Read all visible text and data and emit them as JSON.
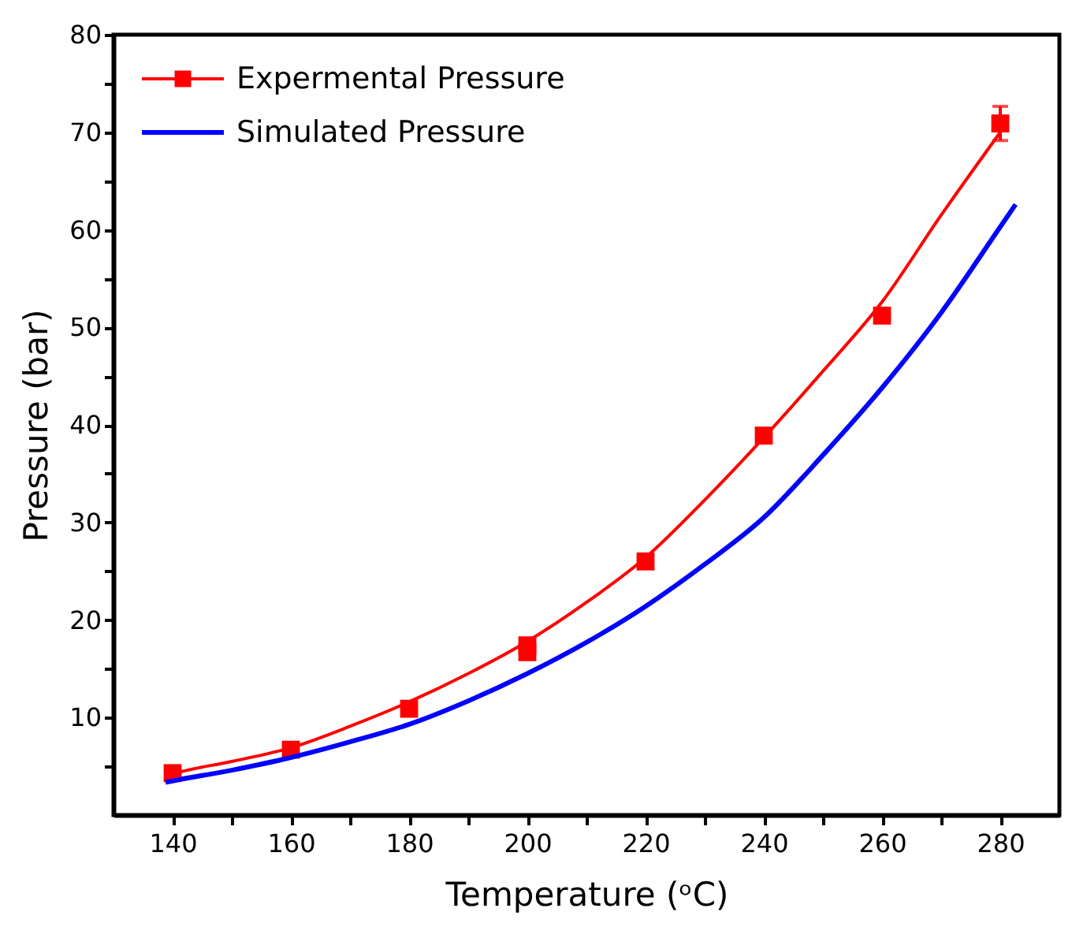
{
  "chart_data": {
    "type": "scatter",
    "xlabel": "Temperature (ᵒC)",
    "ylabel": "Pressure (bar)",
    "xlim": [
      130,
      290
    ],
    "ylim": [
      0,
      80
    ],
    "xticks": [
      140,
      {
        "value": 150,
        "label": null
      },
      160,
      {
        "value": 170,
        "label": null
      },
      180,
      {
        "value": 190,
        "label": null
      },
      200,
      {
        "value": 210,
        "label": null
      },
      220,
      {
        "value": 230,
        "label": null
      },
      240,
      {
        "value": 250,
        "label": null
      },
      260,
      {
        "value": 270,
        "label": null
      },
      280
    ],
    "yticks": [
      {
        "value": 5,
        "label": null
      },
      10,
      {
        "value": 15,
        "label": null
      },
      20,
      {
        "value": 25,
        "label": null
      },
      30,
      {
        "value": 35,
        "label": null
      },
      40,
      {
        "value": 45,
        "label": null
      },
      50,
      {
        "value": 55,
        "label": null
      },
      60,
      {
        "value": 65,
        "label": null
      },
      70,
      {
        "value": 75,
        "label": null
      },
      80
    ],
    "grid": false,
    "legend": "top left",
    "series": [
      {
        "name": "Expermental Pressure",
        "type": "scatter",
        "marker": "square",
        "color": "#ff0000",
        "x": [
          140,
          160,
          180,
          200,
          200,
          220,
          240,
          260,
          280
        ],
        "values": [
          4.3,
          6.7,
          10.9,
          17.4,
          16.7,
          26.0,
          38.9,
          51.2,
          70.9
        ],
        "errors": [
          null,
          null,
          null,
          null,
          null,
          null,
          null,
          null,
          1.75
        ]
      },
      {
        "type": "line",
        "color": "#ff0000",
        "x": [
          139,
          140,
          150,
          160,
          170,
          180,
          190,
          200,
          210,
          220,
          230,
          240,
          250,
          260,
          270,
          280
        ],
        "values": [
          4.0,
          4.2,
          5.5,
          6.9,
          9.1,
          11.6,
          14.5,
          17.8,
          21.8,
          26.4,
          32.3,
          38.7,
          45.5,
          52.6,
          61.5,
          70.0
        ]
      },
      {
        "name": "Simulated Pressure",
        "type": "line",
        "color": "#0000ff",
        "x": [
          138.8,
          140,
          150,
          160,
          170,
          180,
          190,
          200,
          210,
          220,
          230,
          240,
          250,
          260,
          270,
          280,
          282.6
        ],
        "values": [
          3.35,
          3.5,
          4.6,
          5.9,
          7.5,
          9.3,
          11.7,
          14.5,
          17.7,
          21.4,
          25.7,
          30.5,
          36.9,
          43.8,
          51.5,
          60.3,
          62.6
        ]
      }
    ]
  }
}
